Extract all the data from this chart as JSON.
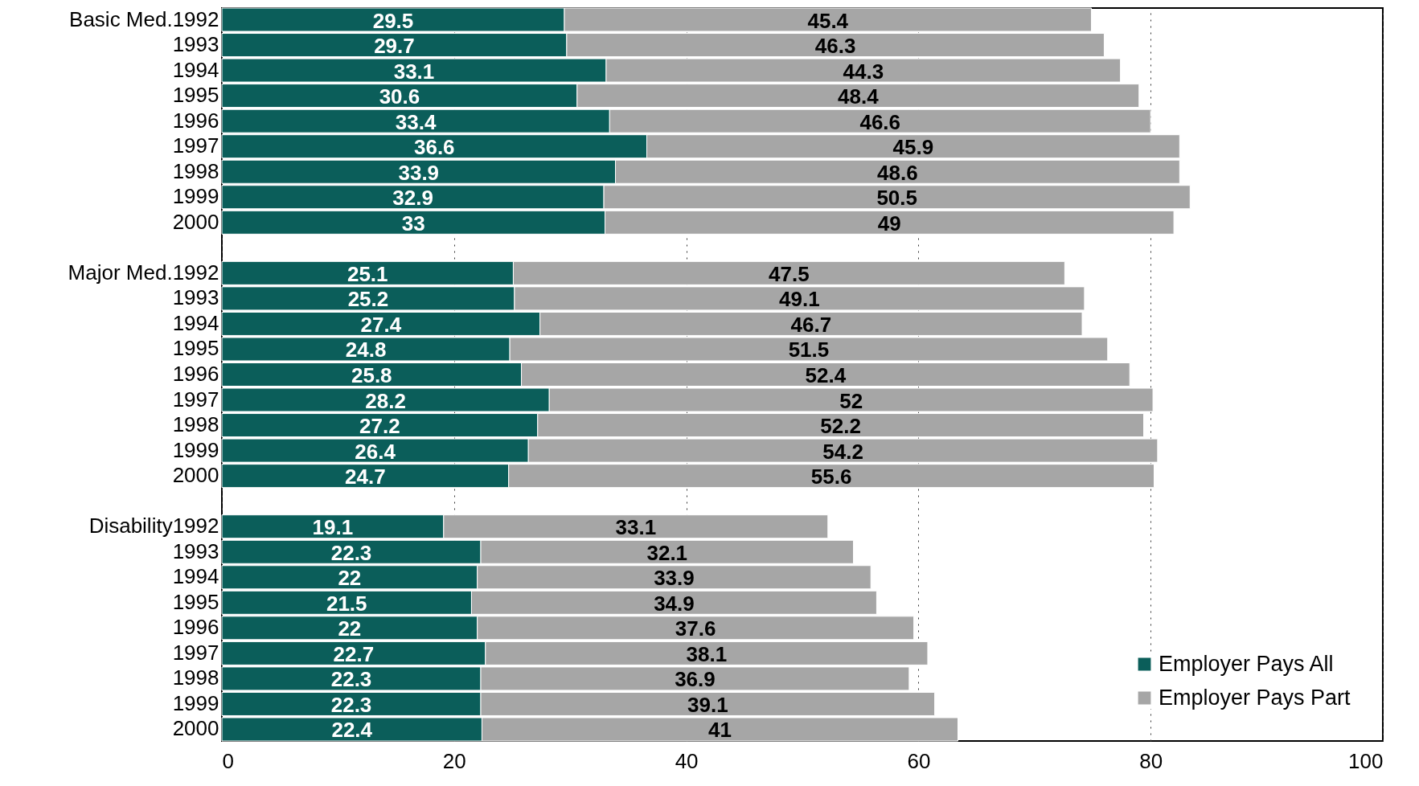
{
  "chart_data": {
    "type": "bar",
    "orientation": "horizontal",
    "stacked": true,
    "data_labels": true,
    "grid": "x",
    "legend": "bottom right",
    "categories": [
      "Basic Med.1992",
      "1993",
      "1994",
      "1995",
      "1996",
      "1997",
      "1998",
      "1999",
      "2000",
      null,
      "Major Med.1992",
      "1993",
      "1994",
      "1995",
      "1996",
      "1997",
      "1998",
      "1999",
      "2000",
      null,
      "Disability1992",
      "1993",
      "1994",
      "1995",
      "1996",
      "1997",
      "1998",
      "1999",
      "2000"
    ],
    "series": [
      {
        "name": "Employer Pays All",
        "color": "#0b5e5a",
        "values": [
          29.5,
          29.7,
          33.1,
          30.6,
          33.4,
          36.6,
          33.9,
          32.9,
          33,
          null,
          25.1,
          25.2,
          27.4,
          24.8,
          25.8,
          28.2,
          27.2,
          26.4,
          24.7,
          null,
          19.1,
          22.3,
          22,
          21.5,
          22,
          22.7,
          22.3,
          22.3,
          22.4
        ]
      },
      {
        "name": "Employer Pays Part",
        "color": "#a6a6a6",
        "values": [
          45.4,
          46.3,
          44.3,
          48.4,
          46.6,
          45.9,
          48.6,
          50.5,
          49,
          null,
          47.5,
          49.1,
          46.7,
          51.5,
          52.4,
          52,
          52.2,
          54.2,
          55.6,
          null,
          33.1,
          32.1,
          33.9,
          34.9,
          37.6,
          38.1,
          36.9,
          39.1,
          41
        ]
      }
    ],
    "xlim": [
      0,
      100
    ],
    "xticks": [
      0,
      20,
      40,
      60,
      80,
      100
    ]
  }
}
